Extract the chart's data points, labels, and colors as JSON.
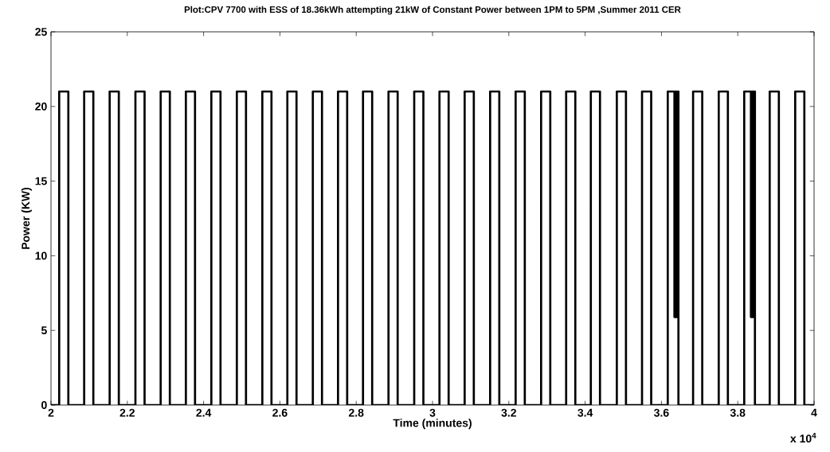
{
  "chart_data": {
    "type": "step",
    "title": "Plot:CPV 7700 with ESS of 18.36kWh attempting 21kW of Constant Power between 1PM to 5PM ,Summer 2011 CER",
    "xlabel": "Time (minutes)",
    "ylabel": "Power (KW)",
    "annotations": [
      "x 10$^{4}$"
    ],
    "x": [
      2.0,
      2.0215,
      2.0455,
      2.087,
      2.111,
      2.1538,
      2.1778,
      2.2213,
      2.2453,
      2.2875,
      2.3115,
      2.3535,
      2.3775,
      2.4203,
      2.4443,
      2.4871,
      2.5111,
      2.5539,
      2.5779,
      2.6195,
      2.6435,
      2.6863,
      2.7103,
      2.7523,
      2.7763,
      2.8178,
      2.8418,
      2.8846,
      2.9086,
      2.952,
      2.976,
      3.0182,
      3.0422,
      3.0842,
      3.1082,
      3.151,
      3.175,
      3.2178,
      3.2418,
      3.2846,
      3.3086,
      3.3502,
      3.3742,
      3.4149,
      3.4389,
      3.483,
      3.507,
      3.5491,
      3.5731,
      3.6165,
      3.634,
      3.637,
      3.64,
      3.643,
      3.6445,
      3.6829,
      3.7069,
      3.7501,
      3.7741,
      3.8169,
      3.8345,
      3.8375,
      3.8405,
      3.8435,
      3.845,
      3.8837,
      3.9077,
      3.9505,
      3.9745,
      4.0
    ],
    "values": [
      0,
      21,
      0,
      21,
      0,
      21,
      0,
      21,
      0,
      21,
      0,
      21,
      0,
      21,
      0,
      21,
      0,
      21,
      0,
      21,
      0,
      21,
      0,
      21,
      0,
      21,
      0,
      21,
      0,
      21,
      0,
      21,
      0,
      21,
      0,
      21,
      0,
      21,
      0,
      21,
      0,
      21,
      0,
      21,
      0,
      21,
      0,
      21,
      0,
      21,
      5.9,
      21,
      5.9,
      21,
      0,
      21,
      0,
      21,
      0,
      21,
      5.9,
      21,
      5.9,
      21,
      0,
      21,
      0,
      21,
      0,
      0
    ],
    "color": "#000000",
    "line_style": "solid",
    "xlim": [
      2,
      4
    ],
    "xticks": [
      2,
      2.2,
      2.4,
      2.6,
      2.8,
      3,
      3.2,
      3.4,
      3.6,
      3.8,
      4
    ],
    "ylim": [
      0,
      25
    ],
    "yticks": [
      0,
      5,
      10,
      15,
      20,
      25
    ],
    "grid": false
  }
}
